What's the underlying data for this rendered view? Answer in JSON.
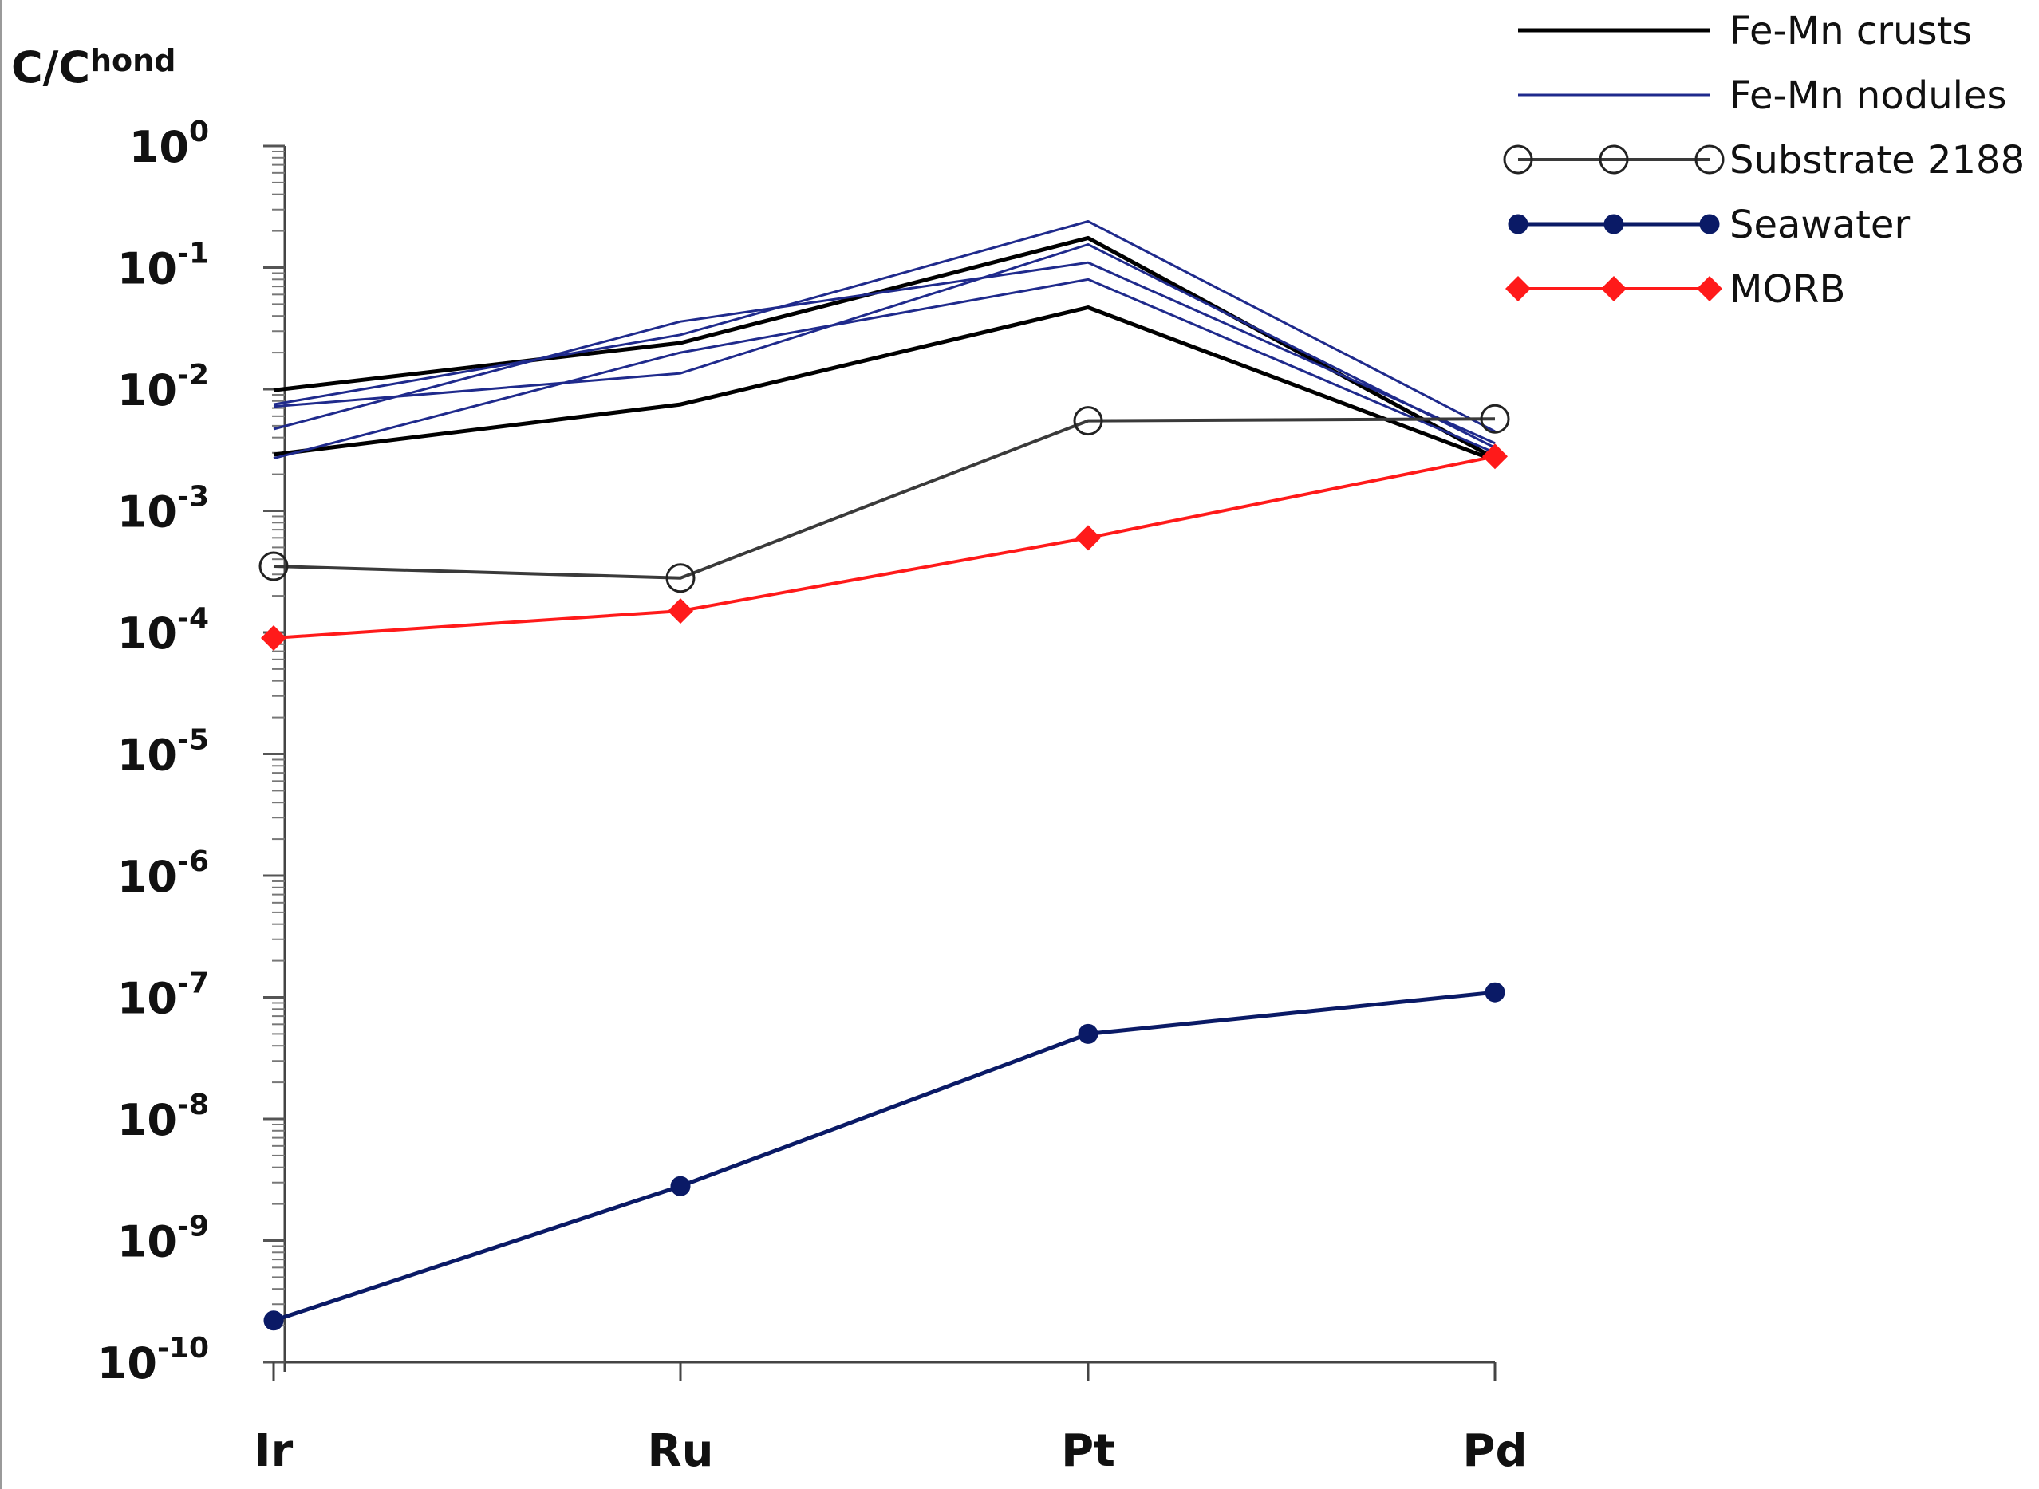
{
  "chart_data": {
    "type": "line",
    "title": "",
    "ylabel": {
      "main": "C/C",
      "sub": "hond"
    },
    "xlabel": "",
    "yscale": "log",
    "ylim": [
      1e-10,
      1
    ],
    "y_tick_exponents": [
      0,
      -1,
      -2,
      -3,
      -4,
      -5,
      -6,
      -7,
      -8,
      -9,
      -10
    ],
    "y_tick_base": "10",
    "categories": [
      "Ir",
      "Ru",
      "Pt",
      "Pd"
    ],
    "colors": {
      "crusts": "#000000",
      "nodules": "#1f2a8c",
      "substrate": "#3a3a3a",
      "seawater": "#0a1a66",
      "morb": "#ff1a1a"
    },
    "series": [
      {
        "name": "Fe-Mn crusts",
        "group": "crusts",
        "values": [
          0.0098,
          0.024,
          0.175,
          0.0027
        ]
      },
      {
        "name": "Fe-Mn crusts",
        "group": "crusts",
        "values": [
          0.0029,
          0.0075,
          0.047,
          0.0026
        ]
      },
      {
        "name": "Fe-Mn nodules",
        "group": "nodules",
        "values": [
          0.0075,
          0.028,
          0.24,
          0.0045
        ]
      },
      {
        "name": "Fe-Mn nodules",
        "group": "nodules",
        "values": [
          0.0047,
          0.036,
          0.11,
          0.0036
        ]
      },
      {
        "name": "Fe-Mn nodules",
        "group": "nodules",
        "values": [
          0.0027,
          0.02,
          0.08,
          0.003
        ]
      },
      {
        "name": "Fe-Mn nodules",
        "group": "nodules",
        "values": [
          0.0072,
          0.0135,
          0.155,
          0.0033
        ]
      },
      {
        "name": "Substrate 2188",
        "group": "substrate",
        "marker": "open-circle",
        "values": [
          0.00035,
          0.00028,
          0.0055,
          0.0057
        ]
      },
      {
        "name": "Seawater",
        "group": "seawater",
        "marker": "filled-circle",
        "values": [
          2.2e-10,
          2.8e-09,
          5e-08,
          1.1e-07
        ]
      },
      {
        "name": "MORB",
        "group": "morb",
        "marker": "diamond",
        "values": [
          9e-05,
          0.00015,
          0.0006,
          0.0028
        ]
      }
    ],
    "legend": {
      "position": "top-right",
      "entries": [
        {
          "label": "Fe-Mn crusts",
          "group": "crusts",
          "marker": "none"
        },
        {
          "label": "Fe-Mn nodules",
          "group": "nodules",
          "marker": "none"
        },
        {
          "label": "Substrate 2188",
          "group": "substrate",
          "marker": "open-circle"
        },
        {
          "label": "Seawater",
          "group": "seawater",
          "marker": "filled-circle"
        },
        {
          "label": "MORB",
          "group": "morb",
          "marker": "diamond"
        }
      ]
    }
  }
}
